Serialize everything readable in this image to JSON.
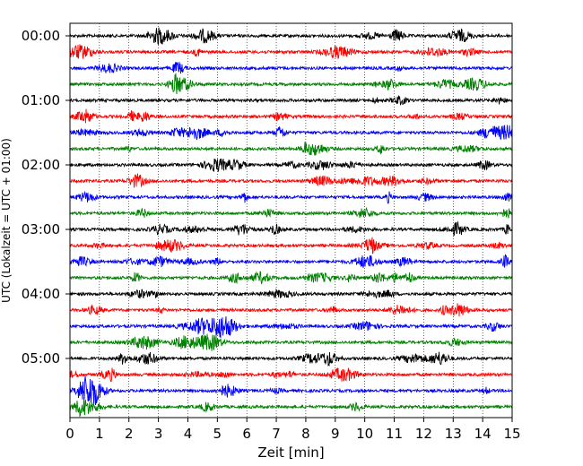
{
  "chart_data": {
    "type": "line",
    "title": "",
    "xlabel": "Zeit  [min]",
    "ylabel": "UTC (Lokalzeit = UTC + 01:00)",
    "xlim": [
      0,
      15
    ],
    "x_ticks": [
      "0",
      "1",
      "2",
      "3",
      "4",
      "5",
      "6",
      "7",
      "8",
      "9",
      "10",
      "11",
      "12",
      "13",
      "14",
      "15"
    ],
    "y_tick_labels": [
      "00:00",
      "01:00",
      "02:00",
      "03:00",
      "04:00",
      "05:00"
    ],
    "y_tick_rows": [
      0,
      4,
      8,
      12,
      16,
      20
    ],
    "grid": {
      "x": true,
      "y": false,
      "style": "dotted"
    },
    "trace_colors": [
      "#000000",
      "#ff0000",
      "#0000ff",
      "#008000"
    ],
    "trace_count": 24,
    "trace_interval_minutes": 15
  }
}
